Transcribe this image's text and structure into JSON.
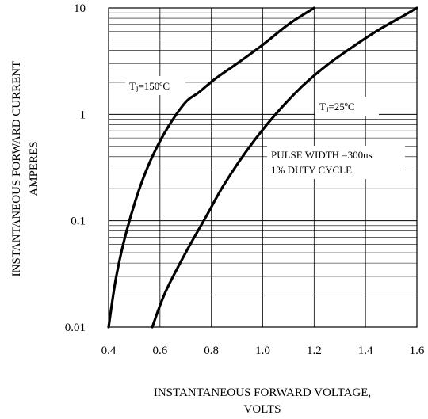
{
  "chart_data": {
    "type": "line",
    "xlabel": "INSTANTANEOUS FORWARD VOLTAGE,",
    "xlabel_line2": "VOLTS",
    "ylabel": "INSTANTANEOUS FORWARD CURRENT",
    "ylabel_line2": "AMPERES",
    "xscale": "linear",
    "yscale": "log",
    "xlim": [
      0.4,
      1.6
    ],
    "ylim": [
      0.01,
      10
    ],
    "x_ticks": [
      0.4,
      0.6,
      0.8,
      1.0,
      1.2,
      1.4,
      1.6
    ],
    "x_tick_labels": [
      "0.4",
      "0.6",
      "0.8",
      "1.0",
      "1.2",
      "1.4",
      "1.6"
    ],
    "y_ticks": [
      0.01,
      0.1,
      1,
      10
    ],
    "y_tick_labels": [
      "0.01",
      "0.1",
      "1",
      "10"
    ],
    "grid": true,
    "series": [
      {
        "name": "TJ=150ºC",
        "x": [
          0.4,
          0.43,
          0.47,
          0.52,
          0.57,
          0.63,
          0.7,
          0.75,
          0.82,
          0.9,
          1.0,
          1.1,
          1.2
        ],
        "y": [
          0.01,
          0.03,
          0.08,
          0.2,
          0.4,
          0.75,
          1.3,
          1.6,
          2.2,
          3.0,
          4.5,
          7.0,
          10.0
        ]
      },
      {
        "name": "TJ=25ºC",
        "x": [
          0.57,
          0.62,
          0.7,
          0.78,
          0.85,
          0.95,
          1.05,
          1.15,
          1.25,
          1.35,
          1.45,
          1.55,
          1.6
        ],
        "y": [
          0.01,
          0.021,
          0.05,
          0.11,
          0.22,
          0.5,
          1.0,
          1.8,
          2.9,
          4.3,
          6.2,
          8.5,
          10.0
        ]
      }
    ],
    "annotations": {
      "t150": {
        "base": "T",
        "sub": "J",
        "rest": "=150ºC"
      },
      "t25": {
        "base": "T",
        "sub": "J",
        "rest": "=25ºC"
      },
      "pulse_line1": "PULSE WIDTH =300us",
      "pulse_line2": "1% DUTY CYCLE"
    }
  }
}
